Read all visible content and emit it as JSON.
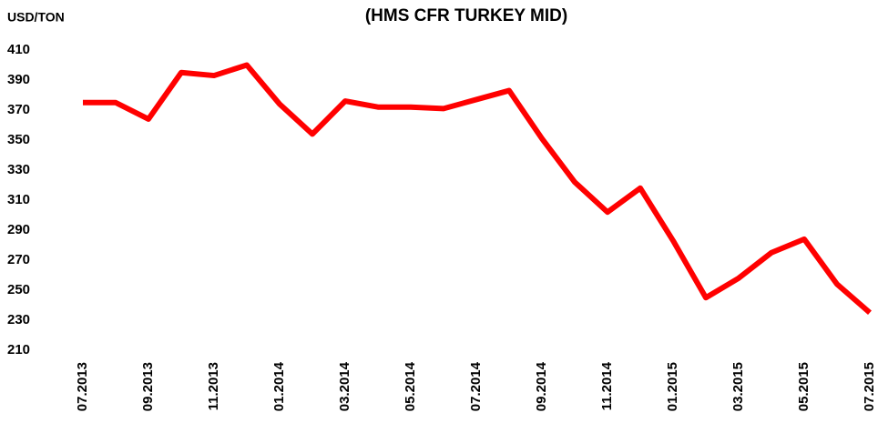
{
  "chart_data": {
    "type": "line",
    "title": "(HMS CFR TURKEY MID)",
    "y_label": "USD/TON",
    "categories": [
      "07.2013",
      null,
      "09.2013",
      null,
      "11.2013",
      null,
      "01.2014",
      null,
      "03.2014",
      null,
      "05.2014",
      null,
      "07.2014",
      null,
      "09.2014",
      null,
      "11.2014",
      null,
      "01.2015",
      null,
      "03.2015",
      null,
      "05.2015",
      null,
      "07.2015"
    ],
    "series": [
      {
        "name": "HMS CFR TURKEY MID",
        "color": "#ff0000",
        "values": [
          375,
          375,
          364,
          395,
          393,
          400,
          374,
          354,
          376,
          372,
          372,
          371,
          377,
          383,
          351,
          322,
          302,
          318,
          283,
          245,
          258,
          275,
          284,
          254,
          235
        ]
      }
    ],
    "ylim": [
      210,
      410
    ],
    "yticks": [
      210,
      230,
      250,
      270,
      290,
      310,
      330,
      350,
      370,
      390,
      410
    ],
    "grid": false
  }
}
